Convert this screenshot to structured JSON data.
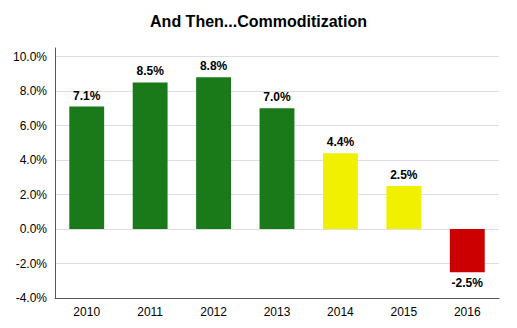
{
  "chart_data": {
    "type": "bar",
    "title": "And Then...Commoditization",
    "categories": [
      "2010",
      "2011",
      "2012",
      "2013",
      "2014",
      "2015",
      "2016"
    ],
    "values": [
      7.1,
      8.5,
      8.8,
      7.0,
      4.4,
      2.5,
      -2.5
    ],
    "value_labels": [
      "7.1%",
      "8.5%",
      "8.8%",
      "7.0%",
      "4.4%",
      "2.5%",
      "-2.5%"
    ],
    "data_labels": true,
    "colors": [
      "#1a7a1a",
      "#1a7a1a",
      "#1a7a1a",
      "#1a7a1a",
      "#f0f000",
      "#f0f000",
      "#cc0000"
    ],
    "ylim": [
      -4.0,
      10.5
    ],
    "yticks": [
      {
        "value": -4.0,
        "label": "-4.0%"
      },
      {
        "value": -2.0,
        "label": "-2.0%"
      },
      {
        "value": 0.0,
        "label": "0.0%"
      },
      {
        "value": 2.0,
        "label": "2.0%"
      },
      {
        "value": 4.0,
        "label": "4.0%"
      },
      {
        "value": 6.0,
        "label": "6.0%"
      },
      {
        "value": 8.0,
        "label": "8.0%"
      },
      {
        "value": 10.0,
        "label": "10.0%"
      }
    ],
    "grid": true
  }
}
